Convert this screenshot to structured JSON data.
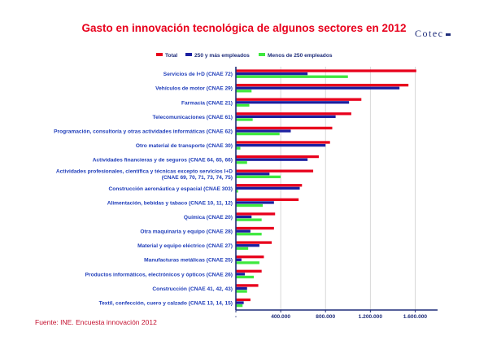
{
  "title": "Gasto en innovación tecnológica de algunos sectores en 2012",
  "brand": "Cotec",
  "source": "Fuente: INE. Encuesta innovación 2012",
  "colors": {
    "total": "#e8001c",
    "large": "#1b1fa0",
    "small": "#3ee83e",
    "axis": "#1f2d7a",
    "grid": "#cfcfcf"
  },
  "chart_data": {
    "type": "bar",
    "orientation": "horizontal",
    "title": "Gasto en innovación tecnológica de algunos sectores en 2012",
    "categories": [
      "Servicios de I+D (CNAE 72)",
      "Vehículos de motor (CNAE 29)",
      "Farmacia (CNAE 21)",
      "Telecomunicaciones (CNAE 61)",
      "Programación, consultoría y otras actividades informáticas (CNAE 62)",
      "Otro material de transporte (CNAE 30)",
      "Actividades financieras y de seguros (CNAE 64, 65, 66)",
      "Actividades profesionales, científica y técnicas excepto servicios I+D (CNAE 69, 70, 71, 73, 74, 75)",
      "Construcción aeronáutica y espacial (CNAE 303)",
      "Alimentación, bebidas y tabaco (CNAE 10, 11, 12)",
      "Química (CNAE 20)",
      "Otra maquinaria y equipo (CNAE 28)",
      "Material y equipo eléctrico (CNAE 27)",
      "Manufacturas metálicas (CNAE 25)",
      "Productos informáticos, electrónicos y ópticos (CNAE 26)",
      "Construcción (CNAE 41, 42, 43)",
      "Textil, confección, cuero y calzado (CNAE 13, 14, 15)"
    ],
    "category_lines": [
      [
        "Servicios de I+D (CNAE 72)"
      ],
      [
        "Vehículos de motor (CNAE 29)"
      ],
      [
        "Farmacia (CNAE 21)"
      ],
      [
        "Telecomunicaciones (CNAE 61)"
      ],
      [
        "Programación, consultoría y otras actividades informáticas (CNAE 62)"
      ],
      [
        "Otro material de transporte (CNAE 30)"
      ],
      [
        "Actividades financieras y de seguros (CNAE 64, 65, 66)"
      ],
      [
        "Actividades profesionales, científica y técnicas excepto servicios I+D",
        "(CNAE 69, 70, 71, 73, 74, 75)"
      ],
      [
        "Construcción aeronáutica y espacial (CNAE 303)"
      ],
      [
        "Alimentación, bebidas y tabaco (CNAE 10, 11, 12)"
      ],
      [
        "Química (CNAE 20)"
      ],
      [
        "Otra maquinaria y equipo (CNAE 28)"
      ],
      [
        "Material y equipo eléctrico (CNAE 27)"
      ],
      [
        "Manufacturas metálicas (CNAE 25)"
      ],
      [
        "Productos informáticos, electrónicos y ópticos (CNAE 26)"
      ],
      [
        "Construcción (CNAE 41, 42, 43)"
      ],
      [
        "Textil, confección, cuero y calzado (CNAE 13, 14, 15)"
      ]
    ],
    "series": [
      {
        "name": "Total",
        "color": "#e8001c",
        "values": [
          1610000,
          1540000,
          1120000,
          1030000,
          860000,
          840000,
          740000,
          690000,
          590000,
          560000,
          350000,
          340000,
          320000,
          250000,
          230000,
          200000,
          130000
        ]
      },
      {
        "name": "250 y más empleados",
        "color": "#1b1fa0",
        "values": [
          640000,
          1460000,
          1010000,
          890000,
          490000,
          800000,
          640000,
          300000,
          570000,
          340000,
          140000,
          130000,
          210000,
          50000,
          80000,
          100000,
          70000
        ]
      },
      {
        "name": "Menos de 250 empleados",
        "color": "#3ee83e",
        "values": [
          1000000,
          140000,
          120000,
          150000,
          390000,
          40000,
          100000,
          400000,
          20000,
          240000,
          230000,
          230000,
          110000,
          210000,
          160000,
          100000,
          60000
        ]
      }
    ],
    "xlim": [
      0,
      1800000
    ],
    "xticks": [
      0,
      400000,
      800000,
      1200000,
      1600000
    ],
    "xtick_labels": [
      "-",
      "400.000",
      "800.000",
      "1.200.000",
      "1.600.000"
    ],
    "legend_position": "top-right",
    "grid": "vertical"
  }
}
